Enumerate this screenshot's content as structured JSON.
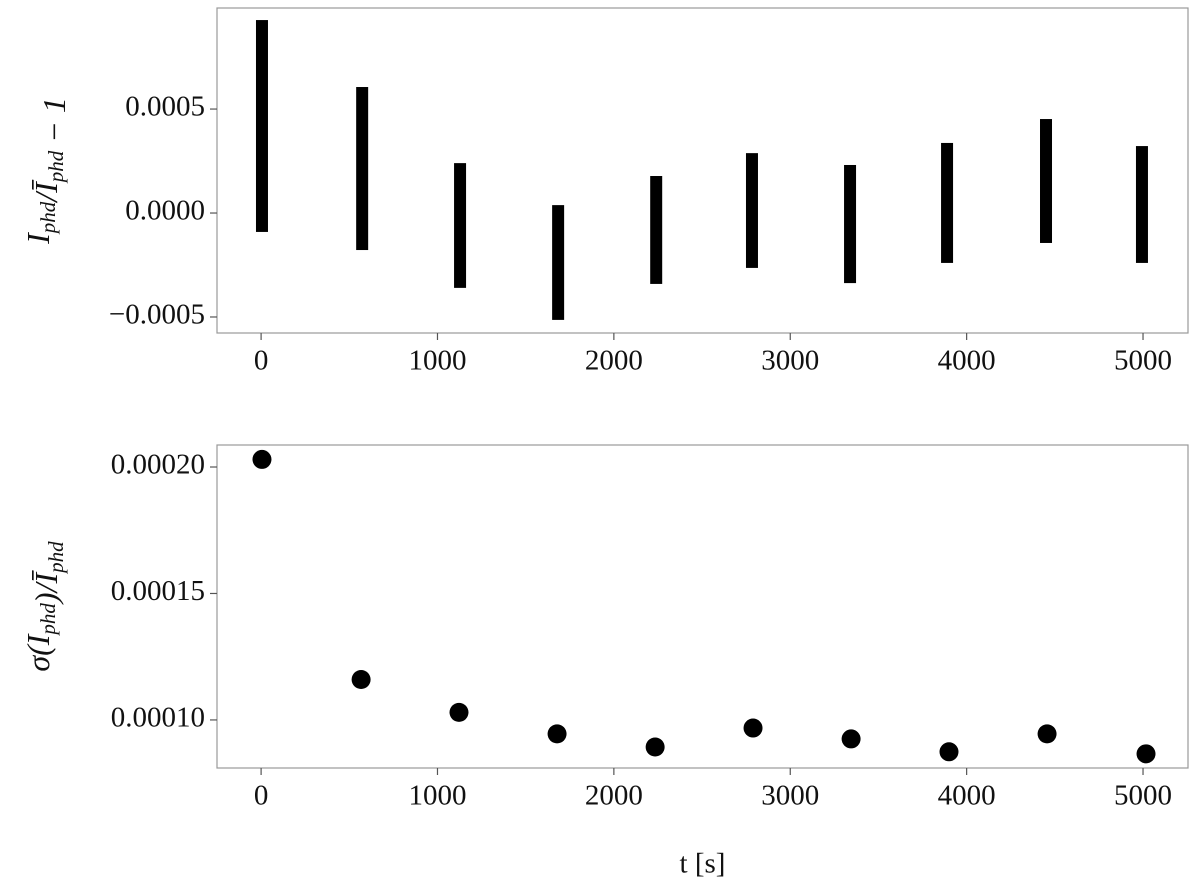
{
  "chart_data": [
    {
      "type": "range",
      "ylabel_parts": [
        {
          "text": "I",
          "sub": "phd"
        },
        {
          "text": "/"
        },
        {
          "text": "Ī",
          "sub": "phd"
        },
        {
          "text": " − 1"
        }
      ],
      "x": [
        5,
        573,
        1128,
        1684,
        2240,
        2783,
        3339,
        3889,
        4450,
        4994
      ],
      "low": [
        -9.1e-05,
        -0.000178,
        -0.00036,
        -0.000514,
        -0.000341,
        -0.000264,
        -0.000337,
        -0.00024,
        -0.000144,
        -0.00024
      ],
      "high": [
        0.000928,
        0.000606,
        0.00024,
        3.8e-05,
        0.000178,
        0.000288,
        0.000231,
        0.000337,
        0.000452,
        0.000322
      ],
      "color": "#000000",
      "xlim": [
        -250,
        5255
      ],
      "xticks": [
        0,
        1000,
        2000,
        3000,
        4000,
        5000
      ],
      "ylim": [
        -0.000577,
        0.000986
      ],
      "yticks": [
        {
          "value": -0.0005,
          "label": "−0.0005"
        },
        {
          "value": 0,
          "label": "0.0000"
        },
        {
          "value": 0.0005,
          "label": "0.0005"
        }
      ]
    },
    {
      "type": "scatter",
      "ylabel_parts": [
        {
          "text": "σ(I",
          "sub": "phd"
        },
        {
          "text": ")/"
        },
        {
          "text": "Ī",
          "sub": "phd"
        }
      ],
      "xlabel": "t [s]",
      "x": [
        5,
        567,
        1122,
        1678,
        2234,
        2789,
        3345,
        3900,
        4456,
        5017
      ],
      "values": [
        0.000203,
        0.000116,
        0.000103,
        9.45e-05,
        8.93e-05,
        9.68e-05,
        9.25e-05,
        8.74e-05,
        9.45e-05,
        8.66e-05
      ],
      "color": "#000000",
      "xlim": [
        -250,
        5255
      ],
      "xticks": [
        0,
        1000,
        2000,
        3000,
        4000,
        5000
      ],
      "ylim": [
        8.1e-05,
        0.0002087
      ],
      "yticks": [
        {
          "value": 0.0001,
          "label": "0.00010"
        },
        {
          "value": 0.00015,
          "label": "0.00015"
        },
        {
          "value": 0.0002,
          "label": "0.00020"
        }
      ]
    }
  ]
}
